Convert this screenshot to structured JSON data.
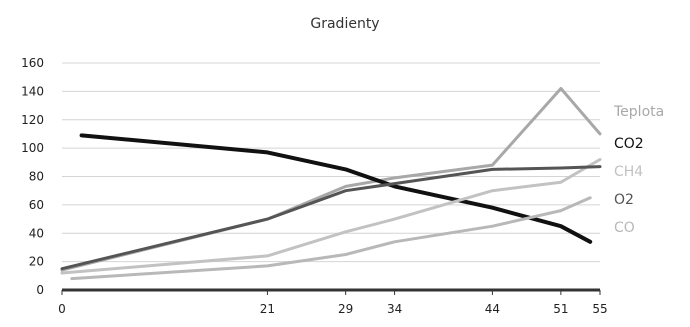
{
  "chart_data": {
    "type": "line",
    "title": "Gradienty",
    "xlabel": "",
    "ylabel": "",
    "categories": [
      "0",
      "21",
      "29",
      "34",
      "44",
      "51",
      "55"
    ],
    "x_positions": [
      0,
      21,
      29,
      34,
      44,
      51,
      55
    ],
    "ylim": [
      0,
      160
    ],
    "yticks": [
      0,
      20,
      40,
      60,
      80,
      100,
      120,
      140,
      160
    ],
    "grid": true,
    "legend_position": "right",
    "series": [
      {
        "name": "Teplota",
        "color": "#a8a8a8",
        "points": [
          [
            0,
            14
          ],
          [
            21,
            50
          ],
          [
            29,
            73
          ],
          [
            34,
            79
          ],
          [
            44,
            88
          ],
          [
            51,
            142
          ],
          [
            55,
            110
          ]
        ]
      },
      {
        "name": "CO2",
        "color": "#111111",
        "points": [
          [
            2,
            109
          ],
          [
            21,
            97
          ],
          [
            29,
            85
          ],
          [
            34,
            73
          ],
          [
            44,
            58
          ],
          [
            51,
            45
          ],
          [
            54,
            34
          ]
        ]
      },
      {
        "name": "CH4",
        "color": "#c2c2c2",
        "points": [
          [
            0,
            12
          ],
          [
            21,
            24
          ],
          [
            29,
            41
          ],
          [
            34,
            50
          ],
          [
            44,
            70
          ],
          [
            51,
            76
          ],
          [
            55,
            92
          ]
        ]
      },
      {
        "name": "O2",
        "color": "#555555",
        "points": [
          [
            0,
            15
          ],
          [
            21,
            50
          ],
          [
            29,
            70
          ],
          [
            34,
            75
          ],
          [
            44,
            85
          ],
          [
            51,
            86
          ],
          [
            55,
            87
          ]
        ]
      },
      {
        "name": "CO",
        "color": "#b8b8b8",
        "points": [
          [
            1,
            8
          ],
          [
            21,
            17
          ],
          [
            29,
            25
          ],
          [
            34,
            34
          ],
          [
            44,
            45
          ],
          [
            51,
            56
          ],
          [
            54,
            65
          ]
        ]
      }
    ]
  }
}
